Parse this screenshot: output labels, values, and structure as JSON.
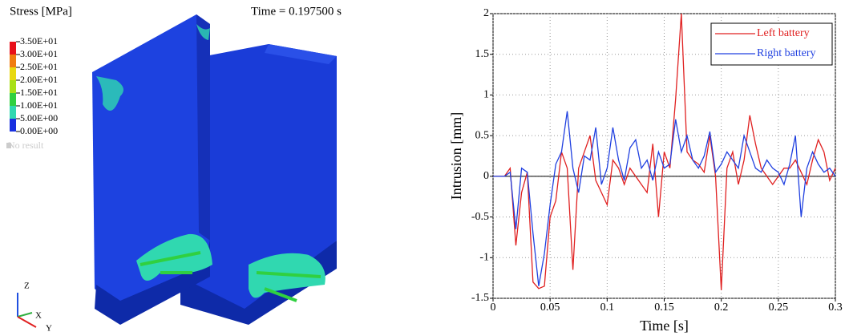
{
  "render": {
    "title": "Stress [MPa]",
    "time": "Time = 0.197500 s",
    "legend_labels": [
      "3.50E+01",
      "3.00E+01",
      "2.50E+01",
      "2.00E+01",
      "1.50E+01",
      "1.00E+01",
      "5.00E+00",
      "0.00E+00"
    ],
    "legend_colors": [
      "#e8101a",
      "#f07c10",
      "#e8d810",
      "#a8e018",
      "#30d040",
      "#30d8b0",
      "#1830e0"
    ],
    "no_result": "No result",
    "axes": [
      "Z",
      "X",
      "Y"
    ]
  },
  "chart_data": {
    "type": "line",
    "xlabel": "Time [s]",
    "ylabel": "Intrusion [mm]",
    "x": [
      0,
      0.005,
      0.01,
      0.015,
      0.02,
      0.025,
      0.03,
      0.035,
      0.04,
      0.045,
      0.05,
      0.055,
      0.06,
      0.065,
      0.07,
      0.075,
      0.08,
      0.085,
      0.09,
      0.095,
      0.1,
      0.105,
      0.11,
      0.115,
      0.12,
      0.125,
      0.13,
      0.135,
      0.14,
      0.145,
      0.15,
      0.155,
      0.16,
      0.165,
      0.17,
      0.175,
      0.18,
      0.185,
      0.19,
      0.195,
      0.2,
      0.205,
      0.21,
      0.215,
      0.22,
      0.225,
      0.23,
      0.235,
      0.24,
      0.245,
      0.25,
      0.255,
      0.26,
      0.265,
      0.27,
      0.275,
      0.28,
      0.285,
      0.29,
      0.295,
      0.3
    ],
    "series": [
      {
        "name": "Left battery",
        "color": "#e02020",
        "values": [
          0,
          0,
          0,
          0.1,
          -0.85,
          -0.2,
          0.05,
          -1.3,
          -1.38,
          -1.35,
          -0.5,
          -0.3,
          0.3,
          0.1,
          -1.15,
          0.1,
          0.3,
          0.5,
          -0.05,
          -0.2,
          -0.35,
          0.2,
          0.1,
          -0.1,
          0.1,
          0,
          -0.1,
          -0.2,
          0.4,
          -0.5,
          0.3,
          0.1,
          0.95,
          2.0,
          0.3,
          0.2,
          0.15,
          0.05,
          0.5,
          0.0,
          -1.4,
          0.1,
          0.3,
          -0.1,
          0.2,
          0.75,
          0.4,
          0.1,
          0,
          -0.1,
          0,
          0.1,
          0.1,
          0.2,
          0.05,
          -0.1,
          0.2,
          0.45,
          0.3,
          -0.05,
          0.1
        ]
      },
      {
        "name": "Right battery",
        "color": "#2040e0",
        "values": [
          0,
          0,
          0,
          0.05,
          -0.65,
          0.1,
          0.05,
          -0.7,
          -1.35,
          -0.95,
          -0.35,
          0.15,
          0.3,
          0.8,
          0.1,
          -0.2,
          0.25,
          0.2,
          0.6,
          -0.1,
          0.1,
          0.6,
          0.2,
          -0.05,
          0.35,
          0.45,
          0.1,
          0.2,
          -0.05,
          0.3,
          0.1,
          0.15,
          0.7,
          0.3,
          0.5,
          0.2,
          0.1,
          0.25,
          0.55,
          0.05,
          0.15,
          0.3,
          0.2,
          0.1,
          0.5,
          0.3,
          0.1,
          0.05,
          0.2,
          0.1,
          0.05,
          -0.1,
          0.15,
          0.5,
          -0.5,
          0.1,
          0.3,
          0.15,
          0.05,
          0.1,
          0.0
        ]
      }
    ],
    "xlim": [
      0,
      0.3
    ],
    "xticks": [
      0,
      0.05,
      0.1,
      0.15,
      0.2,
      0.25,
      0.3
    ],
    "ylim": [
      -1.5,
      2
    ],
    "yticks": [
      -1.5,
      -1,
      -0.5,
      0,
      0.5,
      1,
      1.5,
      2
    ],
    "grid": true,
    "legend": "upper-right"
  }
}
